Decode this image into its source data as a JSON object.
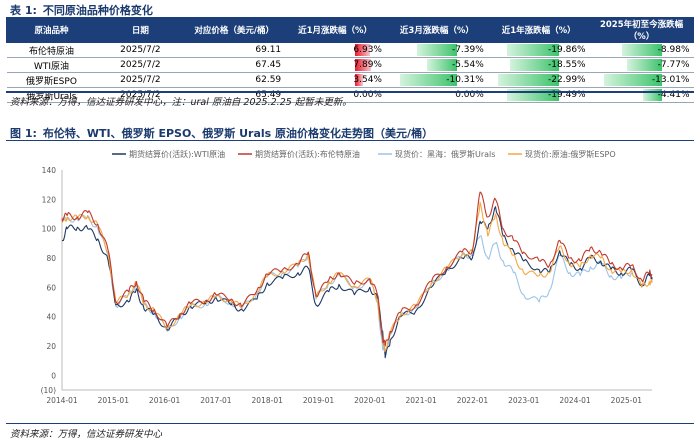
{
  "table_caption": {
    "num": "表 1:",
    "title": "不同原油品种价格变化"
  },
  "table": {
    "headers": [
      "原油品种",
      "日期",
      "对应价格（美元/桶）",
      "近1月涨跌幅（%）",
      "近3月涨跌幅（%）",
      "近1年涨跌幅（%）",
      "2025年初至今涨跌幅（%）"
    ],
    "rows": [
      {
        "name": "布伦特原油",
        "date": "2025/7/2",
        "price": "69.11",
        "m1": "6.93%",
        "m3": "-7.39%",
        "y1": "-19.86%",
        "ytd": "-8.98%"
      },
      {
        "name": "WTI原油",
        "date": "2025/7/2",
        "price": "67.45",
        "m1": "7.89%",
        "m3": "-5.54%",
        "y1": "-18.55%",
        "ytd": "-7.77%"
      },
      {
        "name": "俄罗斯ESPO",
        "date": "2025/7/2",
        "price": "62.59",
        "m1": "3.54%",
        "m3": "-10.31%",
        "y1": "-22.99%",
        "ytd": "-13.01%"
      },
      {
        "name": "俄罗斯Urals",
        "date": "2025/7/2",
        "price": "65.49",
        "m1": "0.00%",
        "m3": "0.00%",
        "y1": "-19.49%",
        "ytd": "-4.41%"
      }
    ],
    "bars": {
      "m1": [
        6.93,
        7.89,
        3.54,
        0.0
      ],
      "m3": [
        -7.39,
        -5.54,
        -10.31,
        0.0
      ],
      "y1": [
        -19.86,
        -18.55,
        -22.99,
        -19.49
      ],
      "ytd": [
        -8.98,
        -7.77,
        -13.01,
        -4.41
      ]
    },
    "colors": {
      "header": "#1c3f7a",
      "positive": "#e8192c",
      "negative": "#3cc36b"
    }
  },
  "source_1": "资料来源：万得，信达证券研发中心，注：ural 原油自 2025.2.25 起暂未更新。",
  "chart_caption": {
    "num": "图 1:",
    "title": "布伦特、WTI、俄罗斯 EPSO、俄罗斯 Urals 原油价格变化走势图（美元/桶）"
  },
  "source_2": "资料来源：万得，信达证券研发中心",
  "chart_data": {
    "type": "line",
    "title": "",
    "xlabel": "",
    "ylabel": "",
    "x_ticks": [
      "2014-01",
      "2015-01",
      "2016-01",
      "2017-01",
      "2018-01",
      "2019-01",
      "2020-01",
      "2021-01",
      "2022-01",
      "2023-01",
      "2024-01",
      "2025-01"
    ],
    "y_ticks": [
      140,
      120,
      100,
      80,
      60,
      40,
      20,
      0,
      -10
    ],
    "ylim": [
      -10,
      140
    ],
    "xlim": [
      2014.0,
      2025.5
    ],
    "grid": false,
    "legend_position": "top",
    "series": [
      {
        "name": "期货结算价(活跃):WTI原油",
        "color": "#1f3864",
        "x": [
          2014.0,
          2014.1,
          2014.3,
          2014.5,
          2014.7,
          2014.9,
          2015.05,
          2015.3,
          2015.45,
          2015.6,
          2015.8,
          2016.05,
          2016.3,
          2016.5,
          2016.8,
          2017.0,
          2017.3,
          2017.5,
          2017.8,
          2018.0,
          2018.3,
          2018.6,
          2018.8,
          2018.95,
          2019.2,
          2019.4,
          2019.7,
          2020.0,
          2020.15,
          2020.25,
          2020.3,
          2020.4,
          2020.6,
          2020.9,
          2021.2,
          2021.5,
          2021.8,
          2022.0,
          2022.15,
          2022.3,
          2022.45,
          2022.6,
          2022.8,
          2023.0,
          2023.3,
          2023.5,
          2023.7,
          2023.9,
          2024.1,
          2024.3,
          2024.5,
          2024.7,
          2024.9,
          2025.1,
          2025.3,
          2025.45,
          2025.5
        ],
        "y": [
          92,
          100,
          101,
          100,
          93,
          78,
          48,
          50,
          59,
          45,
          42,
          31,
          40,
          47,
          49,
          53,
          48,
          45,
          52,
          63,
          66,
          70,
          73,
          48,
          57,
          62,
          55,
          60,
          52,
          30,
          12,
          24,
          40,
          44,
          60,
          72,
          80,
          80,
          105,
          100,
          115,
          95,
          85,
          78,
          72,
          70,
          85,
          75,
          73,
          80,
          78,
          72,
          70,
          72,
          62,
          68,
          67
        ]
      },
      {
        "name": "期货结算价(活跃):布伦特原油",
        "color": "#c0392b",
        "x": [
          2014.0,
          2014.1,
          2014.3,
          2014.5,
          2014.7,
          2014.9,
          2015.05,
          2015.3,
          2015.45,
          2015.6,
          2015.8,
          2016.05,
          2016.3,
          2016.5,
          2016.8,
          2017.0,
          2017.3,
          2017.5,
          2017.8,
          2018.0,
          2018.3,
          2018.6,
          2018.8,
          2018.95,
          2019.2,
          2019.4,
          2019.7,
          2020.0,
          2020.15,
          2020.25,
          2020.3,
          2020.4,
          2020.6,
          2020.9,
          2021.2,
          2021.5,
          2021.8,
          2022.0,
          2022.15,
          2022.3,
          2022.45,
          2022.6,
          2022.8,
          2023.0,
          2023.3,
          2023.5,
          2023.7,
          2023.9,
          2024.1,
          2024.3,
          2024.5,
          2024.7,
          2024.9,
          2025.1,
          2025.3,
          2025.45,
          2025.5
        ],
        "y": [
          107,
          109,
          108,
          111,
          103,
          85,
          50,
          57,
          64,
          50,
          45,
          33,
          42,
          49,
          51,
          55,
          52,
          47,
          58,
          69,
          72,
          76,
          84,
          54,
          65,
          70,
          62,
          66,
          55,
          25,
          20,
          30,
          43,
          48,
          64,
          74,
          84,
          85,
          125,
          108,
          120,
          100,
          92,
          84,
          78,
          75,
          92,
          80,
          78,
          87,
          84,
          76,
          73,
          75,
          65,
          70,
          69
        ]
      },
      {
        "name": "现货价：黑海：俄罗斯Urals",
        "color": "#9dc3e6",
        "x": [
          2014.0,
          2014.1,
          2014.3,
          2014.5,
          2014.7,
          2014.9,
          2015.05,
          2015.3,
          2015.45,
          2015.6,
          2015.8,
          2016.05,
          2016.3,
          2016.5,
          2016.8,
          2017.0,
          2017.3,
          2017.5,
          2017.8,
          2018.0,
          2018.3,
          2018.6,
          2018.8,
          2018.95,
          2019.2,
          2019.4,
          2019.7,
          2020.0,
          2020.15,
          2020.25,
          2020.3,
          2020.4,
          2020.6,
          2020.9,
          2021.2,
          2021.5,
          2021.8,
          2022.0,
          2022.15,
          2022.3,
          2022.45,
          2022.6,
          2022.8,
          2023.0,
          2023.3,
          2023.5,
          2023.7,
          2023.9,
          2024.1,
          2024.3,
          2024.5,
          2024.7,
          2024.9,
          2025.1
        ],
        "y": [
          105,
          107,
          106,
          108,
          100,
          82,
          47,
          55,
          62,
          48,
          43,
          30,
          40,
          46,
          49,
          53,
          50,
          45,
          56,
          67,
          70,
          74,
          82,
          52,
          63,
          68,
          60,
          64,
          50,
          18,
          15,
          28,
          41,
          46,
          62,
          72,
          82,
          82,
          95,
          80,
          90,
          78,
          70,
          55,
          50,
          58,
          82,
          70,
          68,
          74,
          76,
          68,
          66,
          70
        ]
      },
      {
        "name": "现货价:原油:俄罗斯ESPO",
        "color": "#f4a742",
        "x": [
          2014.0,
          2014.1,
          2014.3,
          2014.5,
          2014.7,
          2014.9,
          2015.05,
          2015.3,
          2015.45,
          2015.6,
          2015.8,
          2016.05,
          2016.3,
          2016.5,
          2016.8,
          2017.0,
          2017.3,
          2017.5,
          2017.8,
          2018.0,
          2018.3,
          2018.6,
          2018.8,
          2018.95,
          2019.2,
          2019.4,
          2019.7,
          2020.0,
          2020.15,
          2020.25,
          2020.3,
          2020.4,
          2020.6,
          2020.9,
          2021.2,
          2021.5,
          2021.8,
          2022.0,
          2022.15,
          2022.3,
          2022.45,
          2022.6,
          2022.8,
          2023.0,
          2023.3,
          2023.5,
          2023.7,
          2023.9,
          2024.1,
          2024.3,
          2024.5,
          2024.7,
          2024.9,
          2025.1,
          2025.3,
          2025.45,
          2025.5
        ],
        "y": [
          104,
          108,
          107,
          109,
          102,
          84,
          49,
          56,
          63,
          49,
          44,
          32,
          41,
          48,
          50,
          54,
          51,
          46,
          57,
          68,
          71,
          75,
          83,
          53,
          64,
          69,
          61,
          65,
          52,
          22,
          18,
          29,
          42,
          47,
          63,
          73,
          83,
          84,
          118,
          95,
          110,
          90,
          82,
          70,
          68,
          70,
          88,
          76,
          74,
          82,
          80,
          72,
          70,
          72,
          60,
          64,
          63
        ]
      }
    ]
  }
}
